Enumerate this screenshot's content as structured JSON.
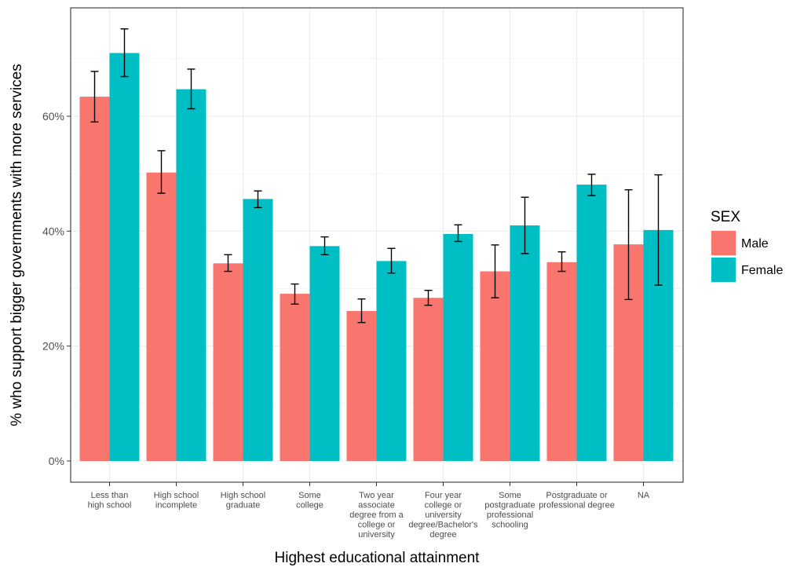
{
  "chart_data": {
    "type": "bar",
    "title": "",
    "xlabel": "Highest educational attainment",
    "ylabel": "% who support bigger governments with more services",
    "ylim": [
      -0.01,
      0.775
    ],
    "y_ticks": [
      0,
      0.2,
      0.4,
      0.6
    ],
    "y_tick_labels": [
      "0%",
      "20%",
      "40%",
      "60%"
    ],
    "grid": true,
    "legend_position": "right",
    "legend_title": "SEX",
    "categories": [
      [
        "Less than",
        "high school"
      ],
      [
        "High school",
        "incomplete"
      ],
      [
        "High school",
        "graduate"
      ],
      [
        "Some",
        "college"
      ],
      [
        "Two year",
        "associate",
        "degree from a",
        "college or",
        "university"
      ],
      [
        "Four year",
        "college or",
        "university",
        "degree/Bachelor's",
        "degree"
      ],
      [
        "Some",
        "postgraduate",
        "professional",
        "schooling"
      ],
      [
        "Postgraduate or",
        "professional degree"
      ],
      [
        "NA"
      ]
    ],
    "series": [
      {
        "name": "Male",
        "color": "#F8766D",
        "values": [
          0.634,
          0.502,
          0.344,
          0.291,
          0.261,
          0.284,
          0.33,
          0.346,
          0.377
        ],
        "error_low": [
          0.59,
          0.466,
          0.33,
          0.273,
          0.241,
          0.271,
          0.284,
          0.33,
          0.281
        ],
        "error_high": [
          0.678,
          0.54,
          0.359,
          0.308,
          0.282,
          0.297,
          0.376,
          0.364,
          0.472
        ]
      },
      {
        "name": "Female",
        "color": "#00BFC4",
        "values": [
          0.71,
          0.647,
          0.456,
          0.374,
          0.348,
          0.395,
          0.41,
          0.481,
          0.402
        ],
        "error_low": [
          0.669,
          0.613,
          0.441,
          0.359,
          0.327,
          0.382,
          0.361,
          0.462,
          0.306
        ],
        "error_high": [
          0.752,
          0.682,
          0.47,
          0.39,
          0.37,
          0.411,
          0.459,
          0.499,
          0.498
        ]
      }
    ]
  }
}
